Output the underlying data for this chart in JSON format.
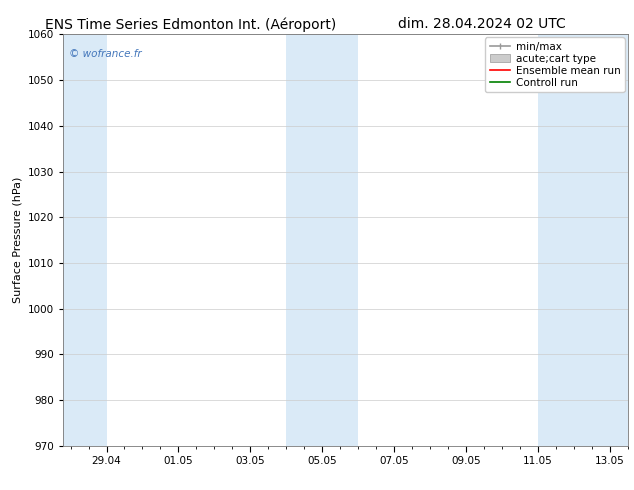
{
  "title_left": "ENS Time Series Edmonton Int. (Aéroport)",
  "title_right": "dim. 28.04.2024 02 UTC",
  "ylabel": "Surface Pressure (hPa)",
  "ylim": [
    970,
    1060
  ],
  "yticks": [
    970,
    980,
    990,
    1000,
    1010,
    1020,
    1030,
    1040,
    1050,
    1060
  ],
  "xtick_labels": [
    "29.04",
    "01.05",
    "03.05",
    "05.05",
    "07.05",
    "09.05",
    "11.05",
    "13.05"
  ],
  "watermark": "© wofrance.fr",
  "watermark_color": "#4477bb",
  "legend_entries": [
    {
      "label": "min/max"
    },
    {
      "label": "acute;cart type"
    },
    {
      "label": "Ensemble mean run",
      "color": "red"
    },
    {
      "label": "Controll run",
      "color": "green"
    }
  ],
  "shaded_color": "#daeaf7",
  "background_color": "#ffffff",
  "grid_color": "#cccccc",
  "title_fontsize": 10,
  "tick_fontsize": 7.5,
  "ylabel_fontsize": 8,
  "legend_fontsize": 7.5
}
